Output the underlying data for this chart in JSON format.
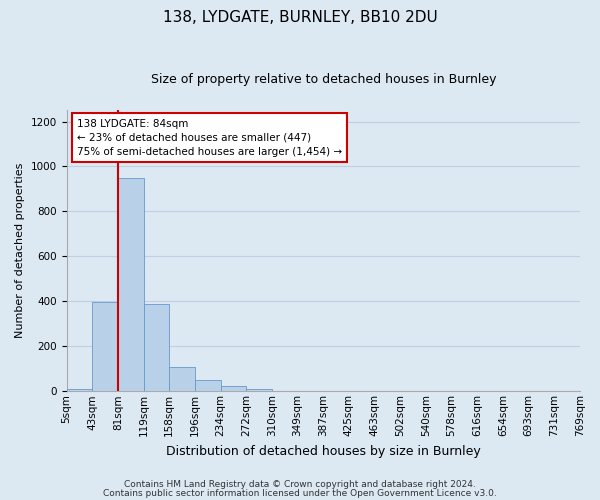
{
  "title": "138, LYDGATE, BURNLEY, BB10 2DU",
  "subtitle": "Size of property relative to detached houses in Burnley",
  "xlabel": "Distribution of detached houses by size in Burnley",
  "ylabel": "Number of detached properties",
  "footer_line1": "Contains HM Land Registry data © Crown copyright and database right 2024.",
  "footer_line2": "Contains public sector information licensed under the Open Government Licence v3.0.",
  "bin_labels": [
    "5sqm",
    "43sqm",
    "81sqm",
    "119sqm",
    "158sqm",
    "196sqm",
    "234sqm",
    "272sqm",
    "310sqm",
    "349sqm",
    "387sqm",
    "425sqm",
    "463sqm",
    "502sqm",
    "540sqm",
    "578sqm",
    "616sqm",
    "654sqm",
    "693sqm",
    "731sqm",
    "769sqm"
  ],
  "bar_values": [
    10,
    395,
    950,
    390,
    108,
    52,
    22,
    8,
    2,
    0,
    0,
    0,
    0,
    0,
    0,
    0,
    0,
    0,
    0,
    0
  ],
  "bar_color": "#b8d0e8",
  "bar_edge_color": "#6699cc",
  "ylim": [
    0,
    1250
  ],
  "yticks": [
    0,
    200,
    400,
    600,
    800,
    1000,
    1200
  ],
  "property_line_bin": 2,
  "property_line_color": "#cc0000",
  "annotation_line1": "138 LYDGATE: 84sqm",
  "annotation_line2": "← 23% of detached houses are smaller (447)",
  "annotation_line3": "75% of semi-detached houses are larger (1,454) →",
  "annotation_box_color": "#ffffff",
  "annotation_box_edge": "#cc0000",
  "grid_color": "#c0d0e0",
  "bg_color": "#dce8f2",
  "title_fontsize": 11,
  "subtitle_fontsize": 9,
  "xlabel_fontsize": 9,
  "ylabel_fontsize": 8,
  "tick_fontsize": 7.5,
  "footer_fontsize": 6.5
}
